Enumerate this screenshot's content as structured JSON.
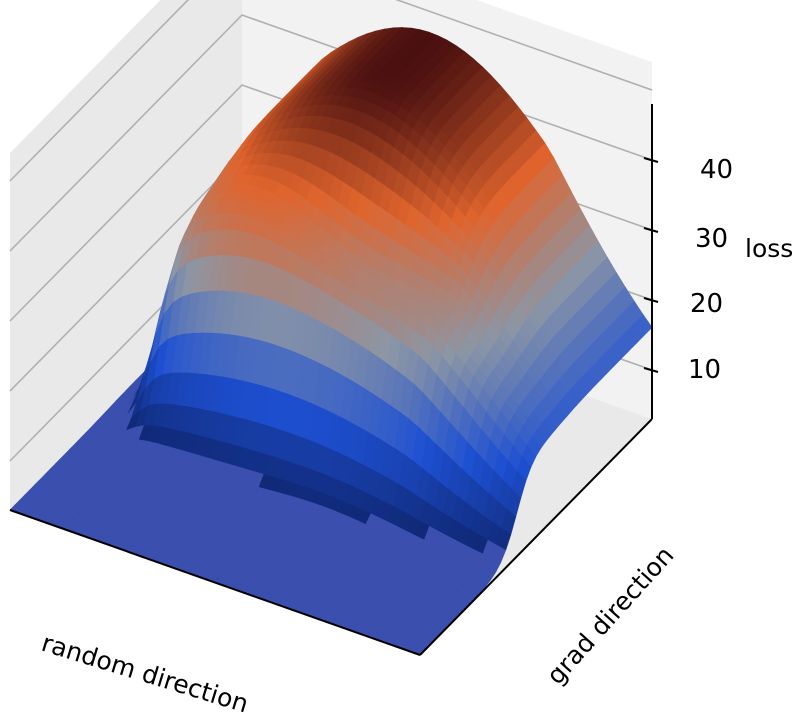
{
  "chart_data": {
    "type": "surface3d",
    "title": "",
    "xlabel": "random direction",
    "ylabel": "grad direction",
    "zlabel": "loss",
    "z_ticks": [
      10,
      20,
      30,
      40
    ],
    "z_range": [
      3,
      48
    ],
    "grid": true,
    "colormap": "blue-gray-orange-darkred",
    "colors": {
      "low": "#0c1e5e",
      "mid_low": "#1e50d2",
      "mid": "#8c96a5",
      "mid_high": "#e0642d",
      "high": "#4a1010",
      "floor": "#3a4fae",
      "pane": "#f2f2f2",
      "pane_dark": "#e9e9e9",
      "grid": "#b0b0b0"
    },
    "surface": {
      "peak_loss": 47,
      "floor_loss": 3,
      "plateau_edge_loss": 4,
      "ridge_loss": 35
    }
  }
}
